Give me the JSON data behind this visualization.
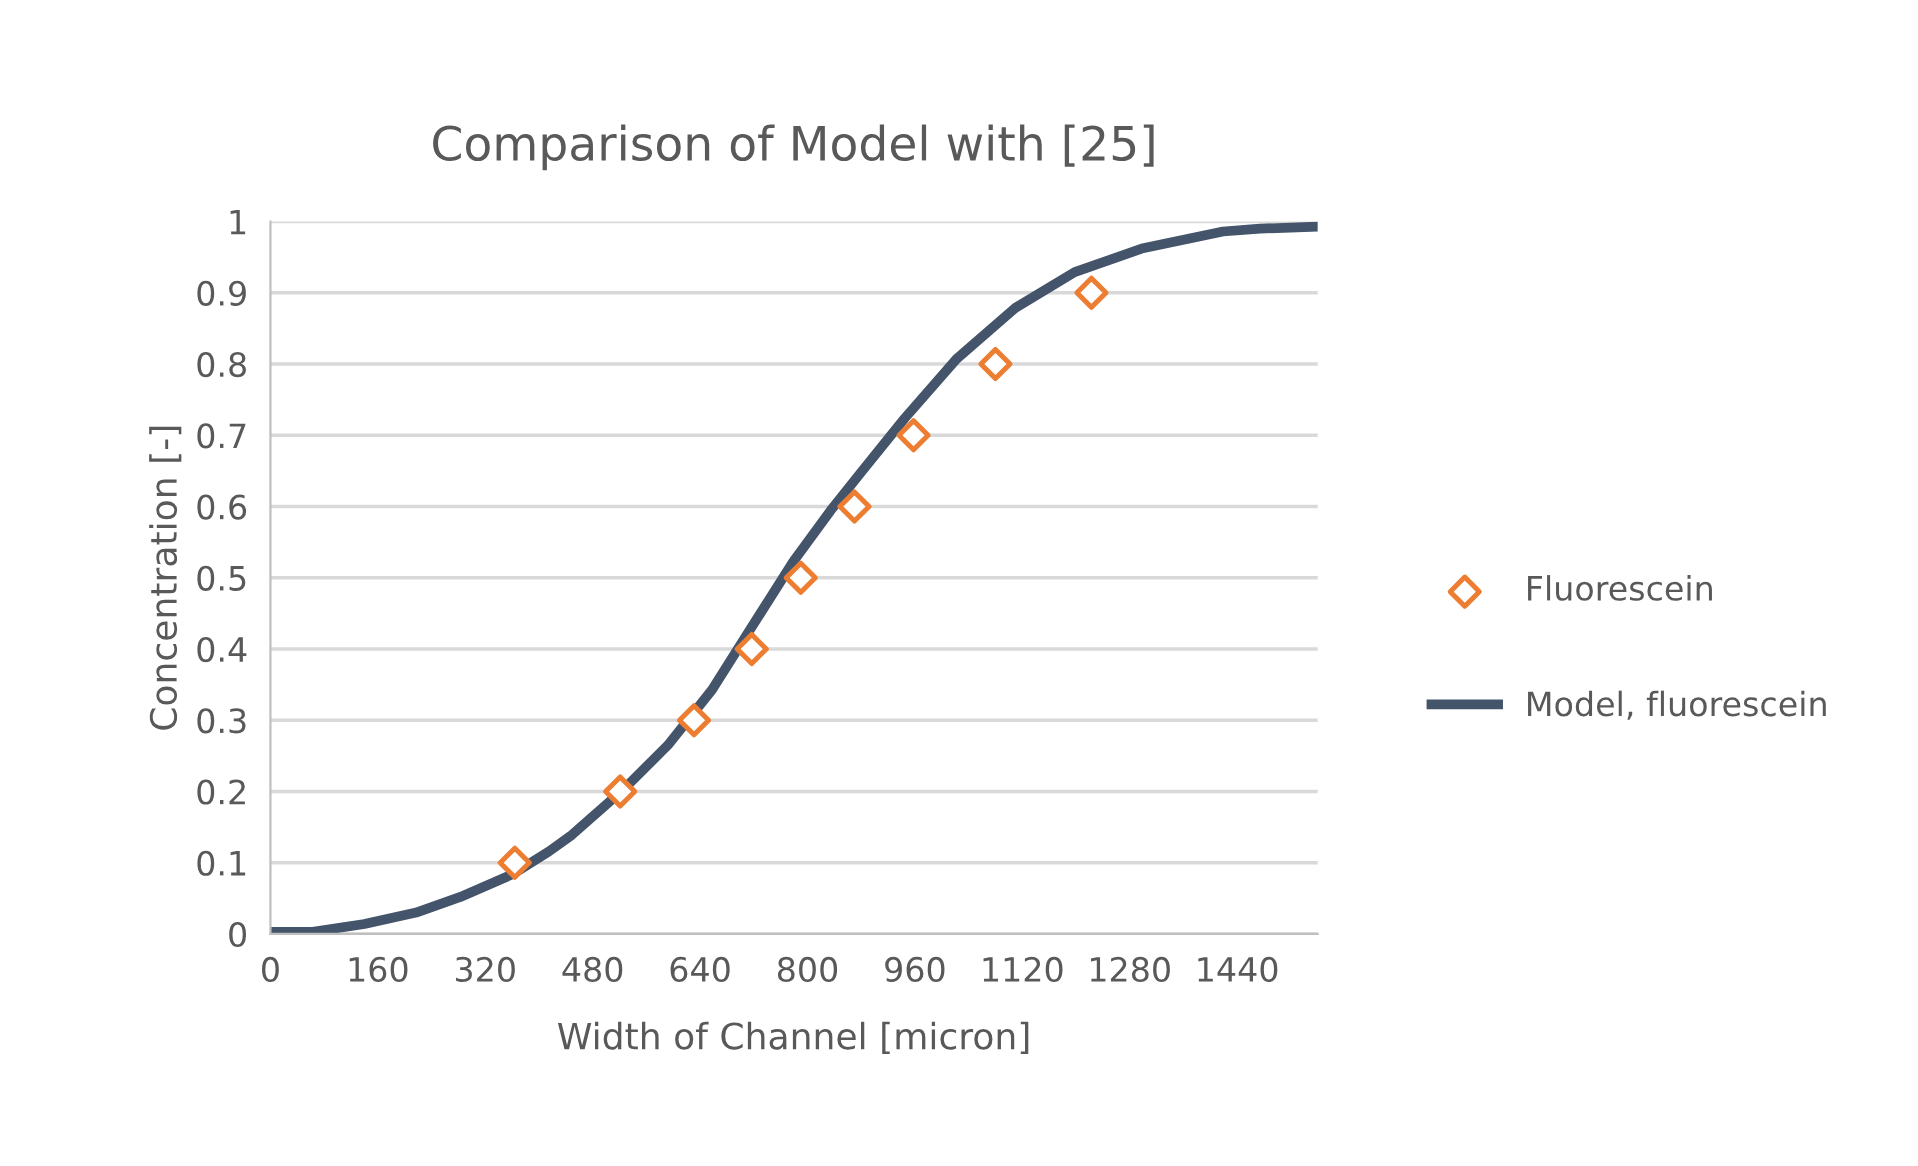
{
  "chart_data": {
    "type": "scatter",
    "title": "Comparison of Model with [25]",
    "xlabel": "Width of Channel [micron]",
    "ylabel": "Concentration [-]",
    "xlim": [
      0,
      1560
    ],
    "xticks": [
      0,
      160,
      320,
      480,
      640,
      800,
      960,
      1120,
      1280,
      1440
    ],
    "ylim": [
      0,
      1
    ],
    "yticks": [
      0,
      0.1,
      0.2,
      0.3,
      0.4,
      0.5,
      0.6,
      0.7,
      0.8,
      0.9,
      1
    ],
    "grid": "y",
    "legend": "right",
    "series": [
      {
        "name": "Fluorescein",
        "color": "#ed7d31",
        "marker": "diamond",
        "x": [
          364,
          521,
          631,
          717,
          790,
          870,
          958,
          1080,
          1223
        ],
        "values": [
          0.1,
          0.2,
          0.3,
          0.4,
          0.5,
          0.6,
          0.7,
          0.8,
          0.9
        ]
      },
      {
        "name": "Model, fluorescein",
        "type": "line",
        "color": "#44546a",
        "marker": "none",
        "line_style": "solid",
        "x": [
          0,
          63,
          140,
          217,
          283,
          361,
          415,
          449,
          526,
          592,
          658,
          713,
          779,
          835,
          879,
          945,
          1022,
          1110,
          1198,
          1298,
          1419,
          1474,
          1560
        ],
        "values": [
          0.003,
          0.003,
          0.014,
          0.03,
          0.052,
          0.084,
          0.116,
          0.139,
          0.203,
          0.265,
          0.343,
          0.425,
          0.523,
          0.595,
          0.647,
          0.724,
          0.807,
          0.879,
          0.929,
          0.962,
          0.986,
          0.99,
          0.993
        ]
      }
    ]
  }
}
